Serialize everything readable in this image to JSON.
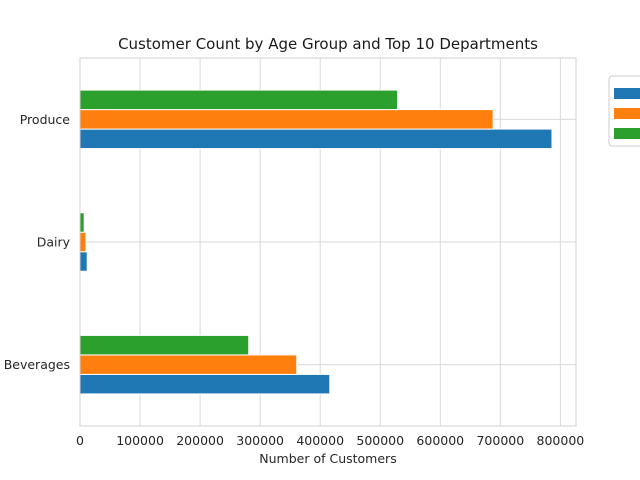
{
  "chart_data": {
    "type": "bar",
    "orientation": "horizontal",
    "title": "Customer Count by Age Group and Top 10 Departments",
    "xlabel": "Number of Customers",
    "ylabel": "",
    "categories": [
      "Beverages",
      "Dairy",
      "Produce"
    ],
    "series": [
      {
        "values": [
          416000,
          12000,
          786000
        ],
        "color": "#1f77b4"
      },
      {
        "values": [
          361000,
          10000,
          688000
        ],
        "color": "#ff7f0e"
      },
      {
        "values": [
          281000,
          7000,
          529000
        ],
        "color": "#2ca02c"
      }
    ],
    "xlim": [
      0,
      826000
    ],
    "xticks": [
      0,
      100000,
      200000,
      300000,
      400000,
      500000,
      600000,
      700000,
      800000
    ],
    "grid": true,
    "legend_position": "outside-right"
  }
}
